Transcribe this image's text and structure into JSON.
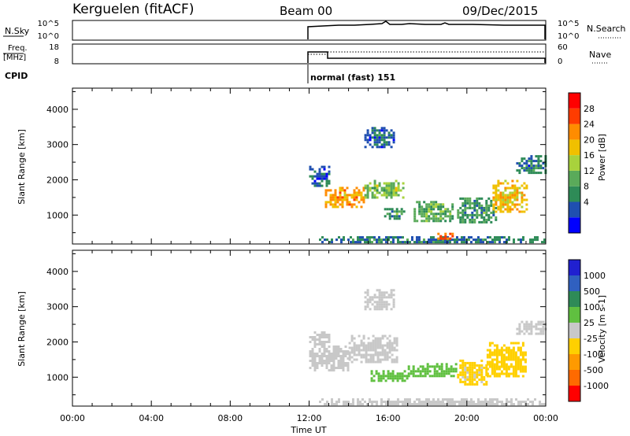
{
  "header": {
    "station": "Kerguelen (fitACF)",
    "beam": "Beam 00",
    "date": "09/Dec/2015"
  },
  "panels": {
    "nsky_label": "N.Sky",
    "nsky_ticks": [
      "10^5",
      "10^0"
    ],
    "nsky_right_ticks": [
      "10^5",
      "10^0"
    ],
    "nsearch_label": "N.Search",
    "freq_label_1": "Freq.",
    "freq_label_2": "[MHz]",
    "freq_ticks": [
      "18",
      "8"
    ],
    "nave_ticks": [
      "60",
      "0"
    ],
    "nave_label": "Nave",
    "cpid_label": "CPID",
    "cpid_value": "normal (fast) 151"
  },
  "axes": {
    "ylabel": "Slant Range [km]",
    "yticks": [
      "4000",
      "3000",
      "2000",
      "1000"
    ],
    "xticks": [
      "00:00",
      "04:00",
      "08:00",
      "12:00",
      "16:00",
      "20:00",
      "00:00"
    ],
    "xlabel": "Time UT"
  },
  "colors": {
    "power": [
      "#0000ff",
      "#1f4fb0",
      "#2e8b57",
      "#5aaa5a",
      "#a8d23c",
      "#f0c000",
      "#ff8c00",
      "#ff3c00",
      "#ff0000"
    ],
    "velocity": [
      "#ff0000",
      "#ff6a00",
      "#ff9a00",
      "#ffd000",
      "#c8c8c8",
      "#60c040",
      "#2e8b57",
      "#3060c0",
      "#2020d0"
    ]
  },
  "chart_data": [
    {
      "type": "heatmap",
      "title": "",
      "xlabel": "Time UT",
      "ylabel": "Slant Range [km]",
      "xlim": [
        0,
        24
      ],
      "ylim": [
        180,
        4600
      ],
      "colorbar_label": "Power [dB]",
      "colorbar_ticks": [
        "28",
        "24",
        "20",
        "16",
        "12",
        "8",
        "4"
      ],
      "colorbar_range": [
        0,
        32
      ],
      "regions": [
        {
          "t": [
            12.0,
            13.0
          ],
          "r": [
            1800,
            2400
          ],
          "value": 6
        },
        {
          "t": [
            12.8,
            14.8
          ],
          "r": [
            1200,
            1800
          ],
          "value": 22
        },
        {
          "t": [
            14.8,
            16.8
          ],
          "r": [
            1500,
            2000
          ],
          "value": 14
        },
        {
          "t": [
            14.8,
            16.3
          ],
          "r": [
            2900,
            3500
          ],
          "value": 6
        },
        {
          "t": [
            15.8,
            16.8
          ],
          "r": [
            900,
            1200
          ],
          "value": 10
        },
        {
          "t": [
            17.3,
            19.3
          ],
          "r": [
            800,
            1400
          ],
          "value": 12
        },
        {
          "t": [
            19.5,
            21.5
          ],
          "r": [
            800,
            1500
          ],
          "value": 10
        },
        {
          "t": [
            21.3,
            23.0
          ],
          "r": [
            1100,
            2000
          ],
          "value": 20
        },
        {
          "t": [
            22.5,
            24.0
          ],
          "r": [
            2200,
            2700
          ],
          "value": 8
        },
        {
          "t": [
            12.5,
            24.0
          ],
          "r": [
            200,
            400
          ],
          "value": 8
        },
        {
          "t": [
            18.5,
            19.3
          ],
          "r": [
            300,
            500
          ],
          "value": 24
        }
      ]
    },
    {
      "type": "heatmap",
      "title": "",
      "xlabel": "Time UT",
      "ylabel": "Slant Range [km]",
      "xlim": [
        0,
        24
      ],
      "ylim": [
        180,
        4600
      ],
      "colorbar_label": "Velocity [m s-1]",
      "colorbar_ticks": [
        "1000",
        "500",
        "100",
        "25",
        "-25",
        "-100",
        "-500",
        "-1000"
      ],
      "colorbar_range": [
        -1250,
        1250
      ],
      "regions": [
        {
          "t": [
            12.0,
            13.0
          ],
          "r": [
            1900,
            2300
          ],
          "value": 0
        },
        {
          "t": [
            12.0,
            14.0
          ],
          "r": [
            1200,
            1900
          ],
          "value": 0
        },
        {
          "t": [
            14.0,
            16.5
          ],
          "r": [
            1400,
            2200
          ],
          "value": 0
        },
        {
          "t": [
            14.8,
            16.3
          ],
          "r": [
            2900,
            3500
          ],
          "value": 0
        },
        {
          "t": [
            15.0,
            17.0
          ],
          "r": [
            900,
            1200
          ],
          "value": 300
        },
        {
          "t": [
            17.0,
            19.5
          ],
          "r": [
            1000,
            1400
          ],
          "value": 300
        },
        {
          "t": [
            19.5,
            21.0
          ],
          "r": [
            800,
            1500
          ],
          "value": -200
        },
        {
          "t": [
            21.0,
            23.0
          ],
          "r": [
            1000,
            2000
          ],
          "value": -300
        },
        {
          "t": [
            22.5,
            24.0
          ],
          "r": [
            2200,
            2600
          ],
          "value": 0
        },
        {
          "t": [
            12.5,
            24.0
          ],
          "r": [
            200,
            400
          ],
          "value": 0
        }
      ]
    }
  ]
}
